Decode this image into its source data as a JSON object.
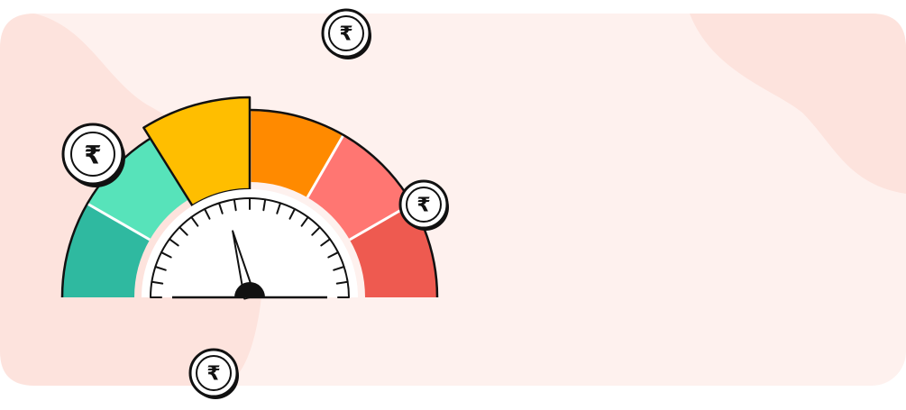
{
  "illustration": {
    "currency_symbol": "₹",
    "icons": [
      "rupee-coin-icon",
      "speedometer-gauge-icon",
      "gauge-needle-icon"
    ],
    "gauge_level": 0.42,
    "colors": {
      "card_background": "#FEF1EE",
      "blob": "#FDE3DD",
      "segment_dark_green": "#2FB9A0",
      "segment_light_green": "#57E3BA",
      "segment_yellow": "#FFBE00",
      "segment_orange": "#FF8A00",
      "segment_salmon": "#FF7672",
      "segment_red": "#EE5A50",
      "outline": "#111111"
    }
  }
}
